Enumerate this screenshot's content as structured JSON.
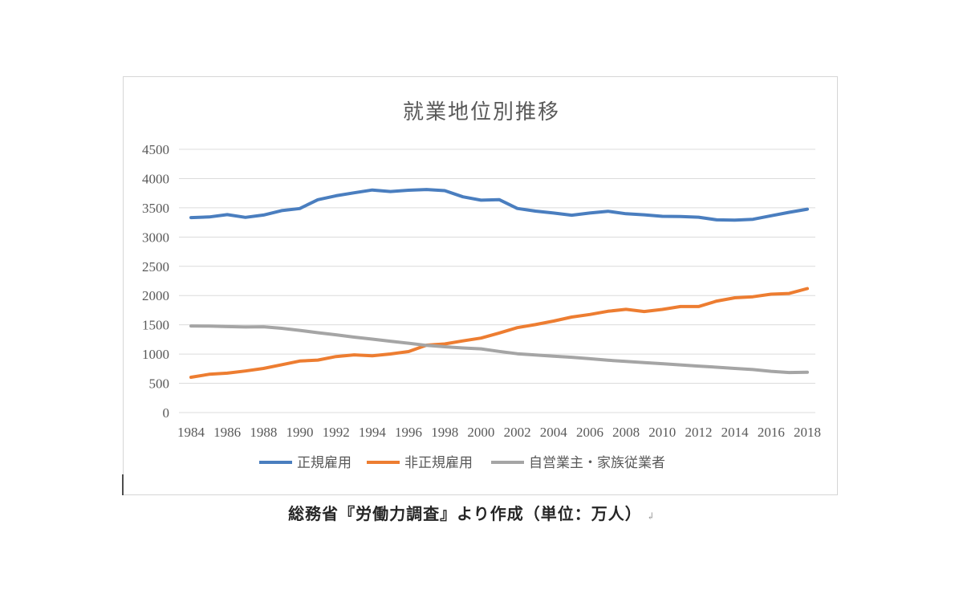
{
  "page": {
    "caption": "総務省『労働力調査』より作成（単位：万人）",
    "caption_mark": "↲"
  },
  "colors": {
    "grid": "#dcdcdc",
    "border": "#d6d6d6",
    "axis_text": "#595959",
    "title_text": "#595959"
  },
  "chart_data": {
    "type": "line",
    "title": "就業地位別推移",
    "xlabel": "",
    "ylabel": "",
    "unit": "万人",
    "ylim": [
      0,
      4500
    ],
    "y_ticks": [
      0,
      500,
      1000,
      1500,
      2000,
      2500,
      3000,
      3500,
      4000,
      4500
    ],
    "grid": true,
    "legend_position": "bottom",
    "x": [
      1984,
      1985,
      1986,
      1987,
      1988,
      1989,
      1990,
      1991,
      1992,
      1993,
      1994,
      1995,
      1996,
      1997,
      1998,
      1999,
      2000,
      2001,
      2002,
      2003,
      2004,
      2005,
      2006,
      2007,
      2008,
      2009,
      2010,
      2011,
      2012,
      2013,
      2014,
      2015,
      2016,
      2017,
      2018
    ],
    "x_tick_labels": [
      "1984",
      "1986",
      "1988",
      "1990",
      "1992",
      "1994",
      "1996",
      "1998",
      "2000",
      "2002",
      "2004",
      "2006",
      "2008",
      "2010",
      "2012",
      "2014",
      "2016",
      "2018"
    ],
    "series": [
      {
        "name": "正規雇用",
        "color": "#4a7ebf",
        "values": [
          3333,
          3343,
          3383,
          3337,
          3377,
          3452,
          3488,
          3639,
          3705,
          3756,
          3805,
          3779,
          3800,
          3812,
          3794,
          3688,
          3630,
          3640,
          3489,
          3444,
          3410,
          3374,
          3411,
          3441,
          3399,
          3380,
          3355,
          3352,
          3340,
          3294,
          3288,
          3304,
          3364,
          3423,
          3476
        ]
      },
      {
        "name": "非正規雇用",
        "color": "#ed7d31",
        "values": [
          604,
          655,
          673,
          711,
          755,
          817,
          881,
          897,
          958,
          986,
          971,
          1001,
          1043,
          1152,
          1173,
          1225,
          1273,
          1360,
          1451,
          1504,
          1564,
          1633,
          1677,
          1732,
          1765,
          1727,
          1763,
          1812,
          1813,
          1906,
          1962,
          1980,
          2023,
          2036,
          2120
        ]
      },
      {
        "name": "自営業主・家族従業者",
        "color": "#a5a5a5",
        "values": [
          1480,
          1478,
          1470,
          1462,
          1466,
          1440,
          1405,
          1365,
          1330,
          1290,
          1255,
          1220,
          1185,
          1148,
          1125,
          1105,
          1090,
          1045,
          1005,
          985,
          965,
          945,
          920,
          895,
          875,
          855,
          835,
          815,
          795,
          775,
          755,
          735,
          705,
          685,
          690
        ]
      }
    ]
  }
}
